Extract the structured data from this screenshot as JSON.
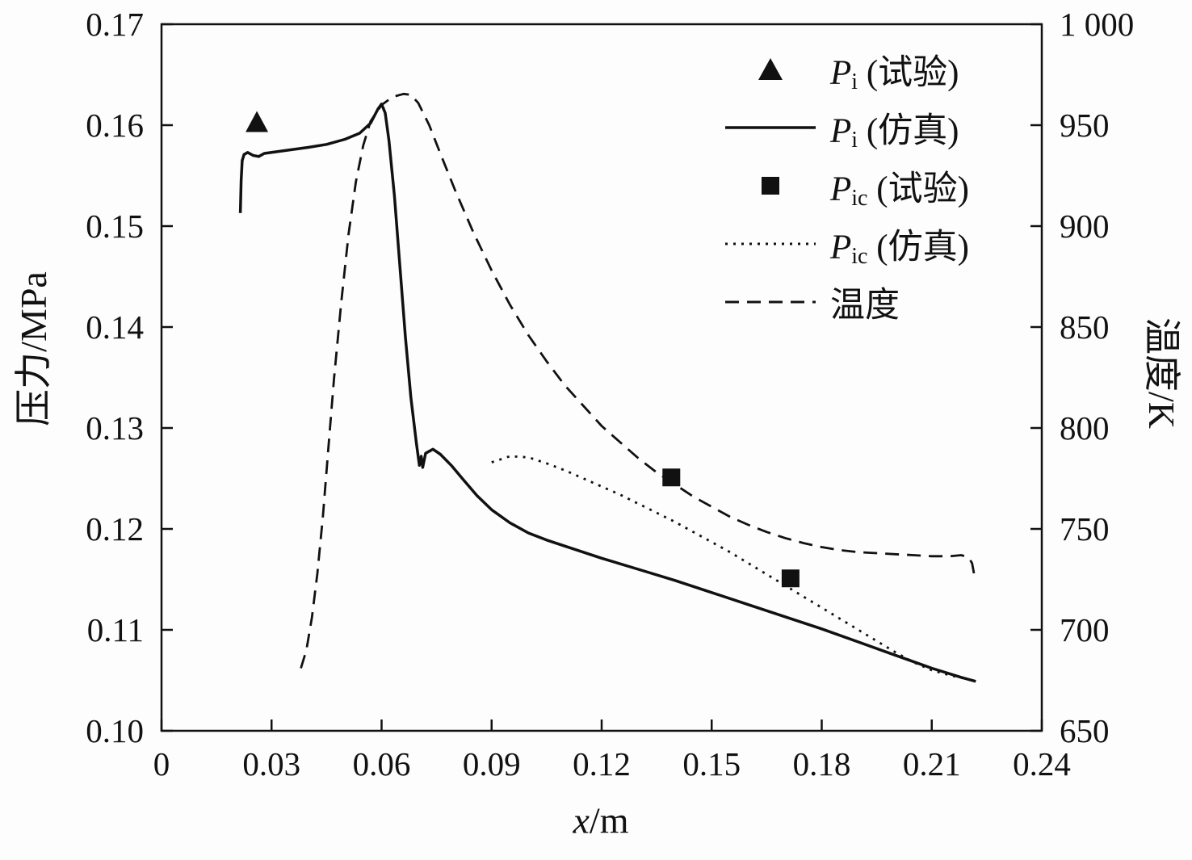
{
  "chart_data": {
    "type": "line",
    "title": "",
    "xlabel_var": "x",
    "xlabel_unit": "/m",
    "ylabel_left": "压力/MPa",
    "ylabel_right": "温度/K",
    "xlim": [
      0,
      0.24
    ],
    "ylim_left": [
      0.1,
      0.17
    ],
    "ylim_right": [
      650,
      1000
    ],
    "grid": false,
    "legend_position": "upper-right-inside",
    "x_ticks": [
      0,
      0.03,
      0.06,
      0.09,
      0.12,
      0.15,
      0.18,
      0.21,
      0.24
    ],
    "x_tick_labels": [
      "0",
      "0.03",
      "0.06",
      "0.09",
      "0.12",
      "0.15",
      "0.18",
      "0.21",
      "0.24"
    ],
    "y_ticks_left": [
      0.1,
      0.11,
      0.12,
      0.13,
      0.14,
      0.15,
      0.16,
      0.17
    ],
    "y_tick_labels_left": [
      "0.10",
      "0.11",
      "0.12",
      "0.13",
      "0.14",
      "0.15",
      "0.16",
      "0.17"
    ],
    "y_ticks_right": [
      650,
      700,
      750,
      800,
      850,
      900,
      950,
      1000
    ],
    "y_tick_labels_right": [
      "650",
      "700",
      "750",
      "800",
      "850",
      "900",
      "950",
      "1 000"
    ],
    "accent_color": "#111111",
    "series": [
      {
        "id": "pi-experiment-points",
        "name": "Pi (试验)",
        "type": "scatter",
        "marker": "triangle",
        "axis": "left",
        "points": [
          [
            0.026,
            0.1602
          ]
        ]
      },
      {
        "id": "pi-simulation-line",
        "name": "Pi (仿真)",
        "type": "line",
        "style": "solid",
        "axis": "left",
        "points": [
          [
            0.0215,
            0.1513
          ],
          [
            0.0217,
            0.1545
          ],
          [
            0.022,
            0.1565
          ],
          [
            0.0225,
            0.1571
          ],
          [
            0.0235,
            0.1573
          ],
          [
            0.025,
            0.157
          ],
          [
            0.0265,
            0.1569
          ],
          [
            0.028,
            0.1572
          ],
          [
            0.032,
            0.1574
          ],
          [
            0.036,
            0.1576
          ],
          [
            0.04,
            0.1578
          ],
          [
            0.045,
            0.1581
          ],
          [
            0.05,
            0.1586
          ],
          [
            0.054,
            0.1592
          ],
          [
            0.057,
            0.1602
          ],
          [
            0.059,
            0.1616
          ],
          [
            0.06,
            0.1621
          ],
          [
            0.061,
            0.1612
          ],
          [
            0.062,
            0.1585
          ],
          [
            0.0635,
            0.153
          ],
          [
            0.065,
            0.146
          ],
          [
            0.0665,
            0.139
          ],
          [
            0.068,
            0.133
          ],
          [
            0.0695,
            0.1285
          ],
          [
            0.0703,
            0.1263
          ],
          [
            0.0708,
            0.1272
          ],
          [
            0.0712,
            0.1261
          ],
          [
            0.072,
            0.1275
          ],
          [
            0.074,
            0.1279
          ],
          [
            0.076,
            0.1274
          ],
          [
            0.079,
            0.1263
          ],
          [
            0.082,
            0.125
          ],
          [
            0.086,
            0.1233
          ],
          [
            0.09,
            0.1219
          ],
          [
            0.095,
            0.1206
          ],
          [
            0.1,
            0.1196
          ],
          [
            0.105,
            0.1189
          ],
          [
            0.11,
            0.1183
          ],
          [
            0.115,
            0.1177
          ],
          [
            0.12,
            0.1171
          ],
          [
            0.13,
            0.116
          ],
          [
            0.14,
            0.1149
          ],
          [
            0.15,
            0.1137
          ],
          [
            0.16,
            0.1125
          ],
          [
            0.17,
            0.1113
          ],
          [
            0.18,
            0.1101
          ],
          [
            0.19,
            0.1088
          ],
          [
            0.2,
            0.1075
          ],
          [
            0.21,
            0.1062
          ],
          [
            0.218,
            0.1053
          ],
          [
            0.222,
            0.1049
          ]
        ]
      },
      {
        "id": "pic-experiment-points",
        "name": "Pic (试验)",
        "type": "scatter",
        "marker": "square",
        "axis": "left",
        "points": [
          [
            0.139,
            0.1251
          ],
          [
            0.1715,
            0.1151
          ]
        ]
      },
      {
        "id": "pic-simulation-line",
        "name": "Pic (仿真)",
        "type": "line",
        "style": "dotted",
        "axis": "left",
        "points": [
          [
            0.09,
            0.1266
          ],
          [
            0.095,
            0.1272
          ],
          [
            0.1,
            0.1271
          ],
          [
            0.105,
            0.1265
          ],
          [
            0.11,
            0.1258
          ],
          [
            0.115,
            0.125
          ],
          [
            0.12,
            0.1242
          ],
          [
            0.125,
            0.1234
          ],
          [
            0.13,
            0.1225
          ],
          [
            0.135,
            0.1216
          ],
          [
            0.14,
            0.1207
          ],
          [
            0.145,
            0.1197
          ],
          [
            0.15,
            0.1187
          ],
          [
            0.155,
            0.1177
          ],
          [
            0.16,
            0.1166
          ],
          [
            0.165,
            0.1155
          ],
          [
            0.17,
            0.1144
          ],
          [
            0.175,
            0.1133
          ],
          [
            0.18,
            0.1122
          ],
          [
            0.185,
            0.1111
          ],
          [
            0.19,
            0.11
          ],
          [
            0.195,
            0.1089
          ],
          [
            0.2,
            0.1078
          ],
          [
            0.205,
            0.1068
          ],
          [
            0.21,
            0.106
          ],
          [
            0.215,
            0.1055
          ],
          [
            0.22,
            0.1051
          ]
        ]
      },
      {
        "id": "temperature-line",
        "name": "温度",
        "type": "line",
        "style": "dashed",
        "axis": "right",
        "points": [
          [
            0.038,
            681
          ],
          [
            0.0395,
            690
          ],
          [
            0.041,
            706
          ],
          [
            0.0425,
            728
          ],
          [
            0.044,
            756
          ],
          [
            0.0455,
            790
          ],
          [
            0.047,
            824
          ],
          [
            0.049,
            862
          ],
          [
            0.051,
            896
          ],
          [
            0.053,
            922
          ],
          [
            0.055,
            940
          ],
          [
            0.057,
            952
          ],
          [
            0.06,
            960
          ],
          [
            0.063,
            964
          ],
          [
            0.066,
            965.5
          ],
          [
            0.068,
            965
          ],
          [
            0.07,
            961
          ],
          [
            0.073,
            950
          ],
          [
            0.076,
            936
          ],
          [
            0.08,
            918
          ],
          [
            0.085,
            897
          ],
          [
            0.09,
            878
          ],
          [
            0.095,
            861
          ],
          [
            0.1,
            846
          ],
          [
            0.105,
            833
          ],
          [
            0.11,
            821
          ],
          [
            0.115,
            811
          ],
          [
            0.12,
            801
          ],
          [
            0.125,
            793
          ],
          [
            0.13,
            785
          ],
          [
            0.135,
            778
          ],
          [
            0.14,
            772
          ],
          [
            0.145,
            766
          ],
          [
            0.15,
            761
          ],
          [
            0.155,
            756
          ],
          [
            0.16,
            752
          ],
          [
            0.165,
            748.5
          ],
          [
            0.17,
            745.5
          ],
          [
            0.175,
            743
          ],
          [
            0.18,
            741
          ],
          [
            0.185,
            739.5
          ],
          [
            0.19,
            738.5
          ],
          [
            0.195,
            738
          ],
          [
            0.2,
            737.5
          ],
          [
            0.205,
            737
          ],
          [
            0.21,
            736.5
          ],
          [
            0.215,
            736.5
          ],
          [
            0.218,
            737
          ],
          [
            0.22,
            736
          ],
          [
            0.221,
            733
          ],
          [
            0.2215,
            728
          ]
        ]
      }
    ],
    "legend": [
      {
        "marker": "triangle",
        "main": "P",
        "sub": "i",
        "rest": " (试验)"
      },
      {
        "marker": "solid",
        "main": "P",
        "sub": "i",
        "rest": " (仿真)"
      },
      {
        "marker": "square",
        "main": "P",
        "sub": "ic",
        "rest": " (试验)"
      },
      {
        "marker": "dotted",
        "main": "P",
        "sub": "ic",
        "rest": " (仿真)"
      },
      {
        "marker": "dashed",
        "main": "",
        "sub": "",
        "rest": "温度"
      }
    ]
  }
}
